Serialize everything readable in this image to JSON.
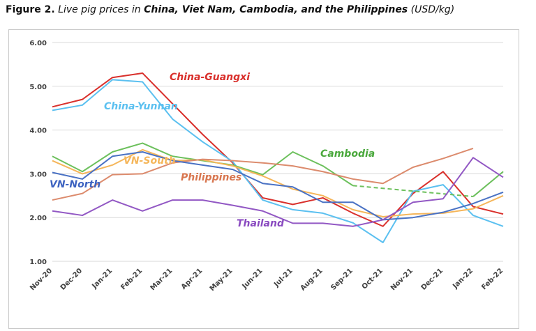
{
  "figure": {
    "number": "Figure 2.",
    "title_pre": "Live pig prices in ",
    "title_bold": "China, Viet Nam, Cambodia, and the Philippines",
    "title_post": " (USD/kg)"
  },
  "chart_data": {
    "type": "line",
    "title": "",
    "xlabel": "",
    "ylabel": "",
    "ylim": [
      1.0,
      6.0
    ],
    "yticks": [
      "1.00",
      "2.00",
      "3.00",
      "4.00",
      "5.00",
      "6.00"
    ],
    "grid": true,
    "legend": "inline labels",
    "categories": [
      "Nov-20",
      "Dec-20",
      "Jan-21",
      "Feb-21",
      "Mar-21",
      "Apr-21",
      "May-21",
      "Jun-21",
      "Jul-21",
      "Aug-21",
      "Sep-21",
      "Oct-21",
      "Nov-21",
      "Dec-21",
      "Jan-22",
      "Feb-22"
    ],
    "series": [
      {
        "name": "China-Guangxi",
        "color": "#d9302c",
        "label_color": "#d9302c",
        "values": [
          4.53,
          4.7,
          5.2,
          5.3,
          4.6,
          3.9,
          3.25,
          2.45,
          2.3,
          2.45,
          2.1,
          1.8,
          2.55,
          3.05,
          2.25,
          2.08
        ]
      },
      {
        "name": "China-Yunnan",
        "color": "#5bc0f0",
        "label_color": "#5bc0f0",
        "values": [
          4.45,
          4.57,
          5.15,
          5.1,
          4.25,
          3.73,
          3.28,
          2.4,
          2.18,
          2.1,
          1.88,
          1.43,
          2.6,
          2.75,
          2.05,
          1.8
        ]
      },
      {
        "name": "Cambodia",
        "color": "#6cc05c",
        "label_color": "#4aa83c",
        "values": [
          3.4,
          3.05,
          3.5,
          3.7,
          3.4,
          3.3,
          3.2,
          2.98,
          3.5,
          3.18,
          2.73,
          null,
          null,
          null,
          2.48,
          3.05
        ],
        "dashed_gap": {
          "from": 10,
          "to": 14
        }
      },
      {
        "name": "VN-South",
        "color": "#f5b65a",
        "label_color": "#f5b65a",
        "values": [
          3.3,
          3.0,
          3.2,
          3.55,
          3.3,
          3.32,
          3.18,
          2.95,
          2.65,
          2.5,
          2.18,
          2.02,
          2.08,
          2.1,
          2.2,
          2.5
        ]
      },
      {
        "name": "Philippines",
        "color": "#dc8b6d",
        "label_color": "#d8764f",
        "values": [
          2.4,
          2.55,
          2.98,
          3.0,
          3.25,
          3.33,
          3.3,
          3.25,
          3.18,
          3.05,
          2.88,
          2.78,
          3.15,
          3.35,
          3.58,
          null
        ]
      },
      {
        "name": "VN-North",
        "color": "#4a72c4",
        "label_color": "#3c62c0",
        "values": [
          3.03,
          2.88,
          3.4,
          3.5,
          3.3,
          3.2,
          3.1,
          2.78,
          2.7,
          2.35,
          2.35,
          1.95,
          2.0,
          2.12,
          2.32,
          2.58
        ]
      },
      {
        "name": "Thailand",
        "color": "#9258c4",
        "label_color": "#8a4bc0",
        "values": [
          2.15,
          2.05,
          2.4,
          2.15,
          2.4,
          2.4,
          2.28,
          2.15,
          1.87,
          1.87,
          1.8,
          1.95,
          2.35,
          2.43,
          3.37,
          2.92
        ]
      }
    ]
  }
}
